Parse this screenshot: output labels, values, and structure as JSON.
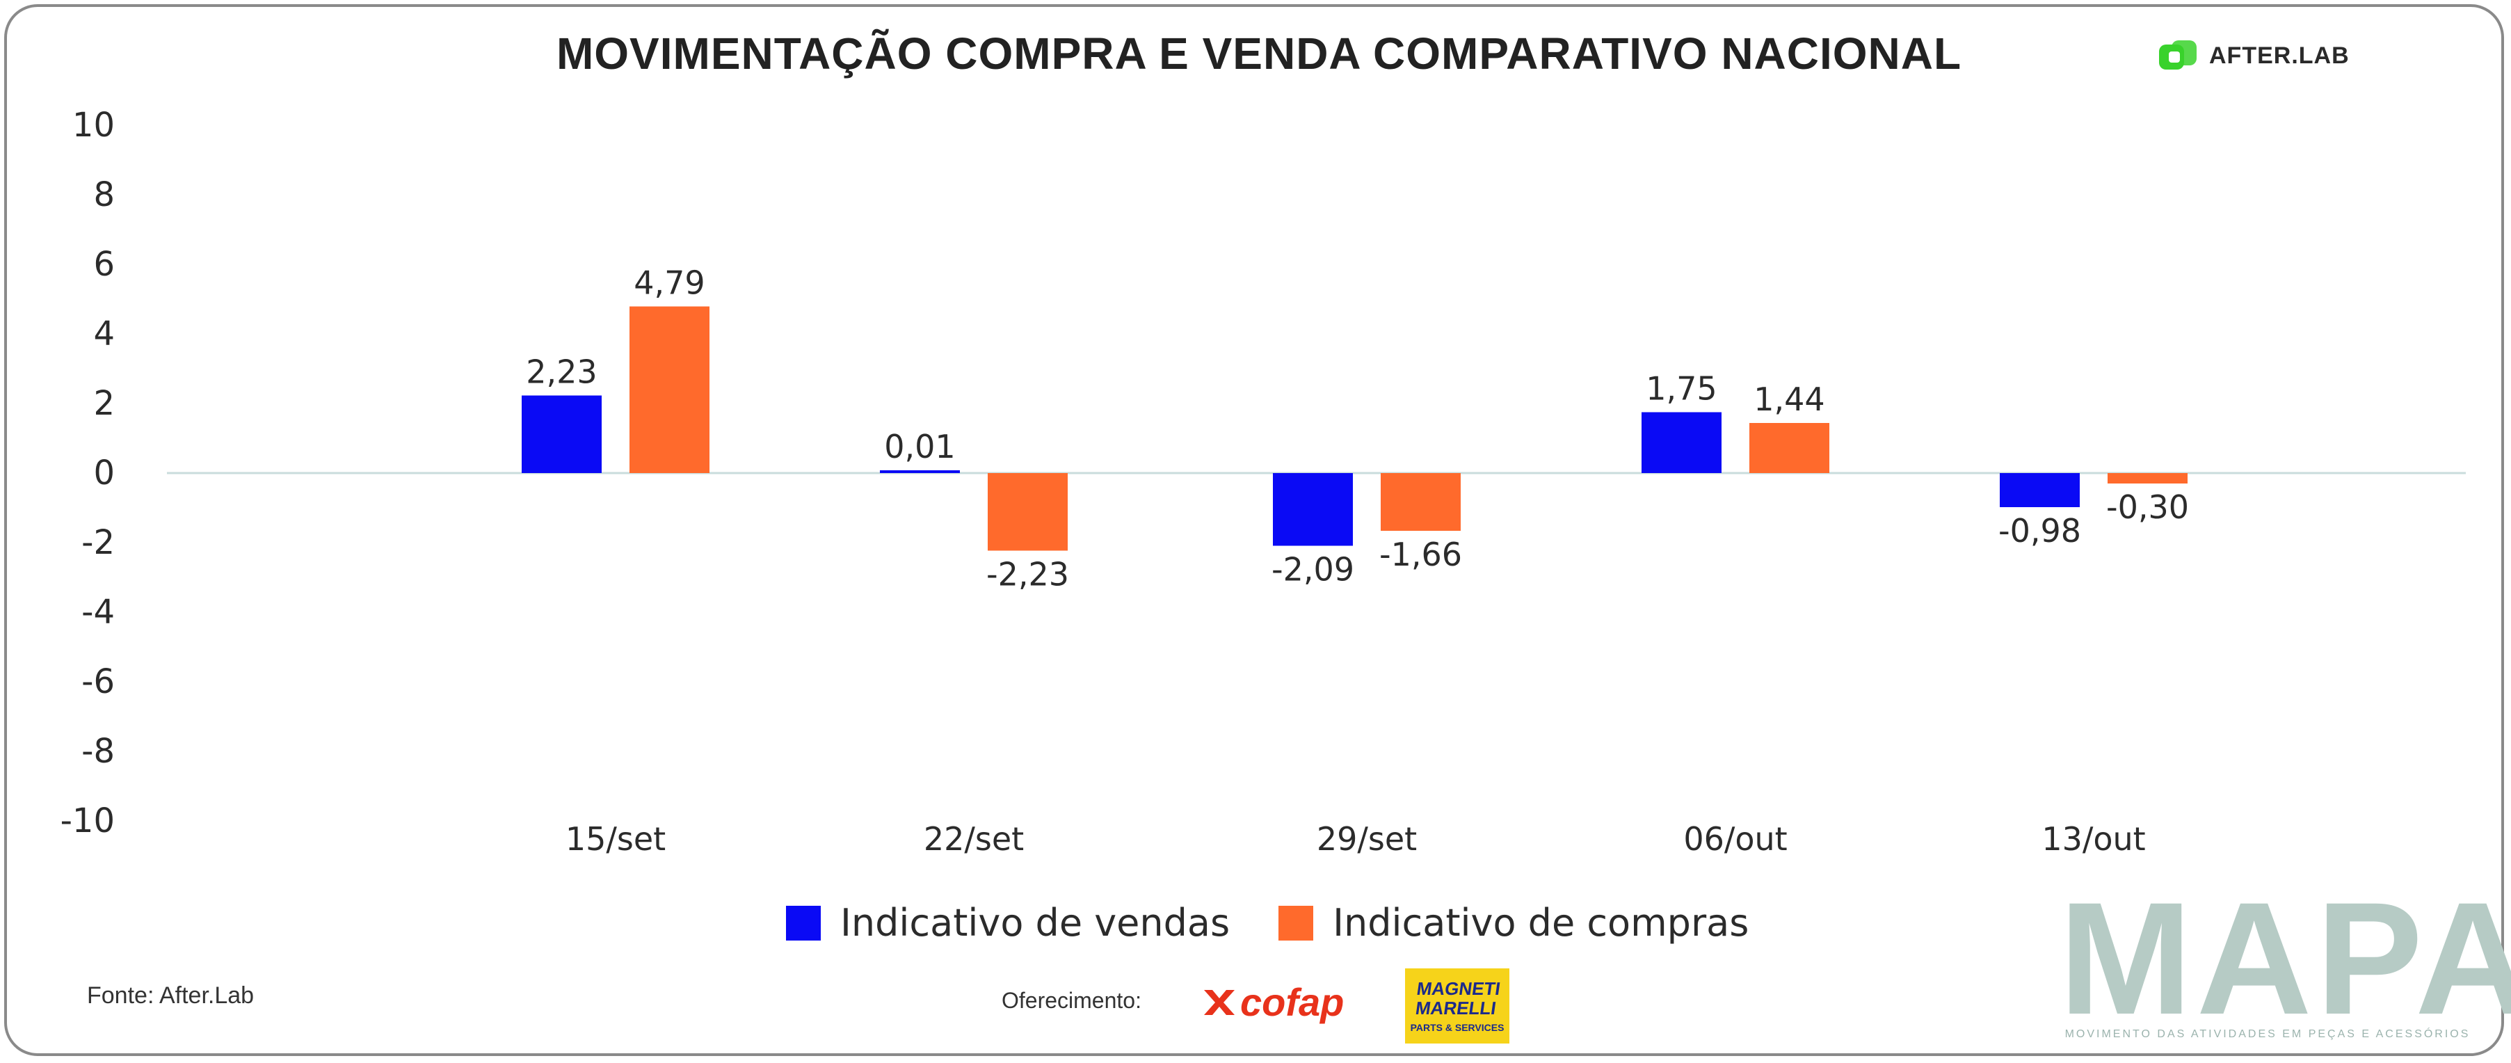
{
  "header": {
    "title": "MOVIMENTAÇÃO COMPRA E VENDA COMPARATIVO NACIONAL",
    "brand": "AFTER.LAB"
  },
  "colors": {
    "vendas": "#0a0af5",
    "compras": "#ff6a2c",
    "zero_line": "#c9dcdc",
    "brand_green": "#39d22c"
  },
  "chart_data": {
    "type": "bar",
    "title": "MOVIMENTAÇÃO COMPRA E VENDA COMPARATIVO NACIONAL",
    "categories": [
      "15/set",
      "22/set",
      "29/set",
      "06/out",
      "13/out"
    ],
    "series": [
      {
        "name": "Indicativo de vendas",
        "values": [
          2.23,
          0.01,
          -2.09,
          1.75,
          -0.98
        ],
        "labels": [
          "2,23",
          "0,01",
          "-2,09",
          "1,75",
          "-0,98"
        ]
      },
      {
        "name": "Indicativo de compras",
        "values": [
          4.79,
          -2.23,
          -1.66,
          1.44,
          -0.3
        ],
        "labels": [
          "4,79",
          "-2,23",
          "-1,66",
          "1,44",
          "-0,30"
        ]
      }
    ],
    "ylim": [
      -10,
      10
    ],
    "yticks": [
      "10",
      "8",
      "6",
      "4",
      "2",
      "0",
      "-2",
      "-4",
      "-6",
      "-8",
      "-10"
    ],
    "xlabel": "",
    "ylabel": "",
    "legend": "bottom"
  },
  "footer": {
    "source": "Fonte: After.Lab",
    "sponsor_label": "Oferecimento:",
    "sponsor1": "cofap",
    "sponsor2_line1": "MAGNETI",
    "sponsor2_line2": "MARELLI",
    "sponsor2_sub": "PARTS & SERVICES",
    "mapa": "MAPA",
    "mapa_tagline": "MOVIMENTO DAS ATIVIDADES EM PEÇAS E ACESSÓRIOS"
  }
}
